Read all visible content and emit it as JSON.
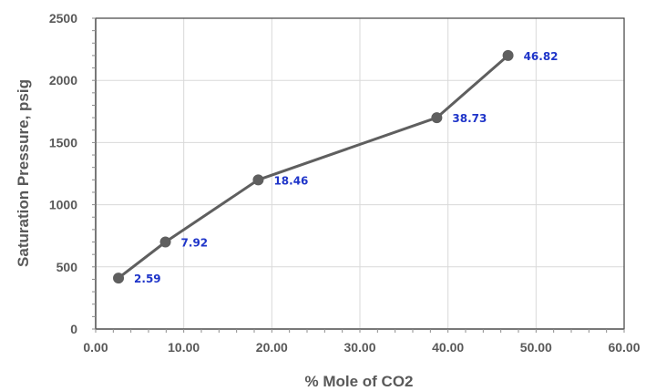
{
  "chart_data": {
    "type": "line",
    "title": "",
    "xlabel": "% Mole of CO2",
    "ylabel": "Saturation Pressure, psig",
    "xlim": [
      0,
      60
    ],
    "ylim": [
      0,
      2500
    ],
    "x_ticks": [
      0,
      10,
      20,
      30,
      40,
      50,
      60
    ],
    "x_tick_labels": [
      "0.00",
      "10.00",
      "20.00",
      "30.00",
      "40.00",
      "50.00",
      "60.00"
    ],
    "y_ticks": [
      0,
      500,
      1000,
      1500,
      2000,
      2500
    ],
    "y_tick_labels": [
      "0",
      "500",
      "1000",
      "1500",
      "2000",
      "2500"
    ],
    "grid": true,
    "series": [
      {
        "x": [
          2.59,
          7.92,
          18.46,
          38.73,
          46.82
        ],
        "y": [
          410,
          700,
          1200,
          1700,
          2200
        ],
        "labels": [
          "2.59",
          "7.92",
          "18.46",
          "38.73",
          "46.82"
        ]
      }
    ],
    "colors": {
      "line": "#5f5f5f",
      "marker": "#5f5f5f",
      "label": "#1f35c9",
      "grid": "#d9d9d9",
      "axis": "#595959"
    }
  }
}
